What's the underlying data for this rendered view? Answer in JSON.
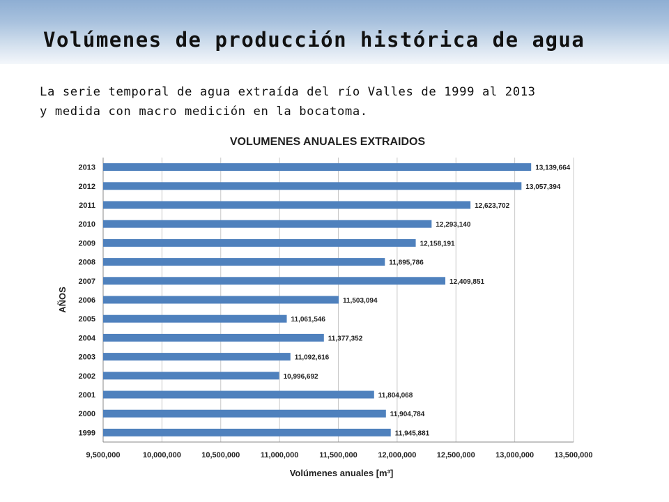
{
  "slide": {
    "title": "Volúmenes de producción histórica de agua",
    "subtitle_line1": "La serie temporal de agua extraída del río Valles de 1999 al 2013",
    "subtitle_line2": "y medida con macro medición en la bocatoma."
  },
  "colors": {
    "bar": "#4f81bd",
    "grid": "#c8c8c8",
    "axis": "#888888"
  },
  "chart_data": {
    "type": "bar",
    "orientation": "horizontal",
    "title": "VOLUMENES ANUALES EXTRAIDOS",
    "xlabel": "Volúmenes anuales [m³]",
    "ylabel": "AÑOS",
    "xlim": [
      9500000,
      13500000
    ],
    "x_ticks": [
      9500000,
      10000000,
      10500000,
      11000000,
      11500000,
      12000000,
      12500000,
      13000000,
      13500000
    ],
    "x_tick_labels": [
      "9,500,000",
      "10,000,000",
      "10,500,000",
      "11,000,000",
      "11,500,000",
      "12,000,000",
      "12,500,000",
      "13,000,000",
      "13,500,000"
    ],
    "grid": "vertical",
    "categories": [
      "2013",
      "2012",
      "2011",
      "2010",
      "2009",
      "2008",
      "2007",
      "2006",
      "2005",
      "2004",
      "2003",
      "2002",
      "2001",
      "2000",
      "1999"
    ],
    "values": [
      13139664,
      13057394,
      12623702,
      12293140,
      12158191,
      11895786,
      12409851,
      11503094,
      11061546,
      11377352,
      11092616,
      10996692,
      11804068,
      11904784,
      11945881
    ],
    "value_labels": [
      "13,139,664",
      "13,057,394",
      "12,623,702",
      "12,293,140",
      "12,158,191",
      "11,895,786",
      "12,409,851",
      "11,503,094",
      "11,061,546",
      "11,377,352",
      "11,092,616",
      "10,996,692",
      "11,804,068",
      "11,904,784",
      "11,945,881"
    ]
  }
}
